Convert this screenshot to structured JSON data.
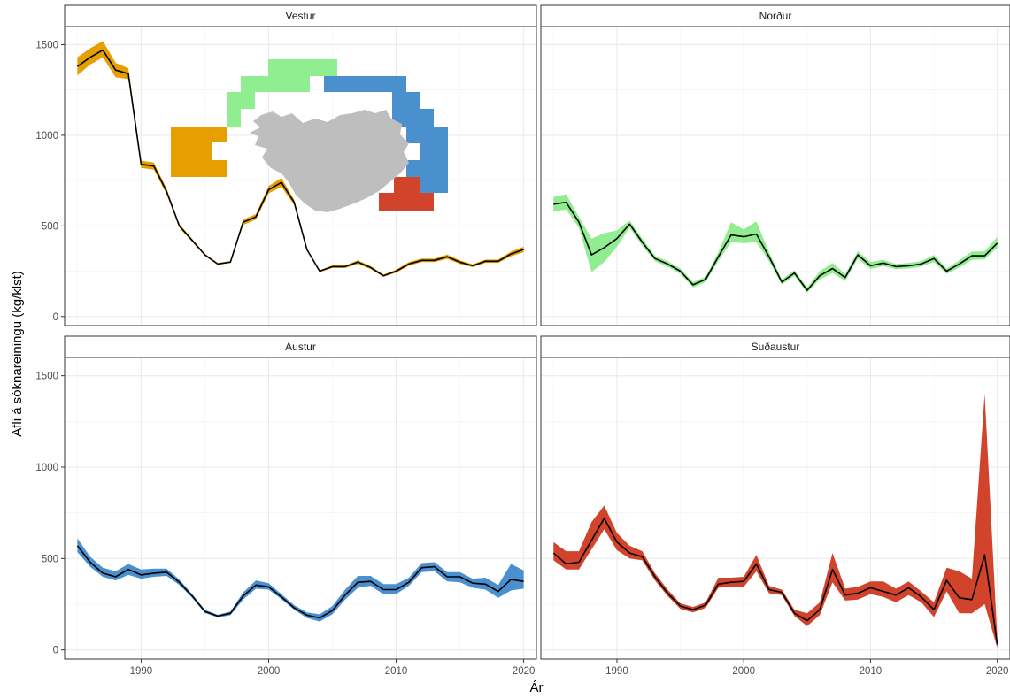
{
  "chart_data": {
    "type": "area",
    "xlabel": "Ár",
    "ylabel": "Afli á sóknareiningu (kg/klst)",
    "xlim": [
      1984,
      2021
    ],
    "ylim": [
      -50,
      1600
    ],
    "x_ticks": [
      1990,
      2000,
      2010,
      2020
    ],
    "y_ticks": [
      0,
      500,
      1000,
      1500
    ],
    "grid": true,
    "legend": "none",
    "inset_map": {
      "panel": "Vestur",
      "regions": [
        "Vestur",
        "Norður",
        "Austur",
        "Suðaustur"
      ]
    },
    "panels": [
      {
        "title": "Vestur",
        "color": "#E69F00",
        "x": [
          1985,
          1986,
          1987,
          1988,
          1989,
          1990,
          1991,
          1992,
          1993,
          1994,
          1995,
          1996,
          1997,
          1998,
          1999,
          2000,
          2001,
          2002,
          2003,
          2004,
          2005,
          2006,
          2007,
          2008,
          2009,
          2010,
          2011,
          2012,
          2013,
          2014,
          2015,
          2016,
          2017,
          2018,
          2019,
          2020
        ],
        "y": [
          1380,
          1430,
          1470,
          1360,
          1340,
          840,
          830,
          690,
          500,
          420,
          340,
          290,
          300,
          520,
          550,
          700,
          740,
          630,
          370,
          250,
          275,
          275,
          300,
          270,
          225,
          250,
          290,
          310,
          310,
          330,
          300,
          280,
          305,
          305,
          345,
          370
        ],
        "lower": [
          1330,
          1390,
          1430,
          1320,
          1310,
          820,
          810,
          675,
          490,
          412,
          334,
          286,
          296,
          505,
          535,
          680,
          715,
          615,
          364,
          245,
          268,
          268,
          290,
          262,
          219,
          242,
          280,
          300,
          300,
          318,
          290,
          272,
          296,
          296,
          332,
          355
        ],
        "upper": [
          1430,
          1480,
          1520,
          1400,
          1370,
          860,
          850,
          705,
          510,
          428,
          346,
          296,
          306,
          535,
          565,
          720,
          765,
          645,
          376,
          255,
          282,
          282,
          310,
          278,
          231,
          258,
          300,
          320,
          320,
          342,
          310,
          288,
          314,
          314,
          358,
          385
        ]
      },
      {
        "title": "Norður",
        "color": "#90EE90",
        "x": [
          1985,
          1986,
          1987,
          1988,
          1989,
          1990,
          1991,
          1992,
          1993,
          1994,
          1995,
          1996,
          1997,
          1998,
          1999,
          2000,
          2001,
          2002,
          2003,
          2004,
          2005,
          2006,
          2007,
          2008,
          2009,
          2010,
          2011,
          2012,
          2013,
          2014,
          2015,
          2016,
          2017,
          2018,
          2019,
          2020
        ],
        "y": [
          620,
          630,
          520,
          340,
          380,
          430,
          510,
          410,
          320,
          290,
          250,
          175,
          205,
          330,
          450,
          440,
          455,
          330,
          190,
          240,
          145,
          225,
          265,
          215,
          340,
          280,
          295,
          275,
          280,
          290,
          320,
          250,
          290,
          335,
          335,
          405
        ],
        "lower": [
          580,
          590,
          490,
          245,
          300,
          385,
          490,
          390,
          305,
          275,
          235,
          160,
          190,
          305,
          410,
          405,
          410,
          305,
          175,
          225,
          130,
          205,
          240,
          195,
          320,
          262,
          278,
          262,
          265,
          275,
          300,
          235,
          270,
          312,
          315,
          380
        ],
        "upper": [
          660,
          675,
          550,
          430,
          460,
          475,
          530,
          430,
          335,
          305,
          265,
          190,
          220,
          355,
          520,
          480,
          525,
          355,
          205,
          255,
          160,
          250,
          295,
          235,
          360,
          300,
          312,
          290,
          295,
          305,
          340,
          265,
          310,
          358,
          360,
          440
        ]
      },
      {
        "title": "Austur",
        "color": "#4A90CF",
        "x": [
          1985,
          1986,
          1987,
          1988,
          1989,
          1990,
          1991,
          1992,
          1993,
          1994,
          1995,
          1996,
          1997,
          1998,
          1999,
          2000,
          2001,
          2002,
          2003,
          2004,
          2005,
          2006,
          2007,
          2008,
          2009,
          2010,
          2011,
          2012,
          2013,
          2014,
          2015,
          2016,
          2017,
          2018,
          2019,
          2020
        ],
        "y": [
          570,
          480,
          420,
          400,
          440,
          410,
          420,
          425,
          370,
          295,
          210,
          185,
          200,
          295,
          355,
          345,
          290,
          230,
          190,
          175,
          215,
          300,
          370,
          375,
          330,
          330,
          370,
          450,
          455,
          400,
          400,
          365,
          360,
          320,
          385,
          375
        ],
        "lower": [
          535,
          455,
          400,
          380,
          410,
          390,
          400,
          405,
          355,
          285,
          202,
          178,
          190,
          275,
          335,
          330,
          278,
          220,
          175,
          155,
          195,
          275,
          340,
          350,
          305,
          305,
          350,
          425,
          430,
          375,
          370,
          340,
          330,
          285,
          325,
          335
        ],
        "upper": [
          610,
          510,
          450,
          430,
          470,
          440,
          445,
          445,
          385,
          305,
          220,
          192,
          210,
          315,
          380,
          365,
          305,
          245,
          205,
          195,
          240,
          330,
          405,
          405,
          360,
          360,
          395,
          475,
          480,
          425,
          425,
          390,
          395,
          355,
          470,
          435
        ]
      },
      {
        "title": "Suðaustur",
        "color": "#D2432B",
        "x": [
          1985,
          1986,
          1987,
          1988,
          1989,
          1990,
          1991,
          1992,
          1993,
          1994,
          1995,
          1996,
          1997,
          1998,
          1999,
          2000,
          2001,
          2002,
          2003,
          2004,
          2005,
          2006,
          2007,
          2008,
          2009,
          2010,
          2011,
          2012,
          2013,
          2014,
          2015,
          2016,
          2017,
          2018,
          2019,
          2020
        ],
        "y": [
          530,
          470,
          480,
          600,
          720,
          590,
          530,
          510,
          400,
          310,
          240,
          220,
          245,
          360,
          370,
          375,
          470,
          330,
          315,
          200,
          160,
          220,
          440,
          300,
          310,
          340,
          320,
          300,
          340,
          290,
          220,
          380,
          285,
          275,
          520,
          30
        ],
        "lower": [
          490,
          440,
          440,
          550,
          660,
          545,
          500,
          490,
          380,
          295,
          225,
          205,
          230,
          340,
          345,
          345,
          430,
          310,
          300,
          185,
          130,
          190,
          370,
          270,
          275,
          305,
          290,
          260,
          300,
          260,
          180,
          320,
          200,
          200,
          250,
          10
        ],
        "upper": [
          590,
          540,
          540,
          700,
          790,
          640,
          570,
          540,
          420,
          330,
          255,
          235,
          260,
          395,
          395,
          400,
          520,
          350,
          330,
          220,
          200,
          260,
          530,
          335,
          345,
          375,
          375,
          335,
          375,
          320,
          260,
          450,
          430,
          390,
          1400,
          60
        ]
      }
    ]
  }
}
